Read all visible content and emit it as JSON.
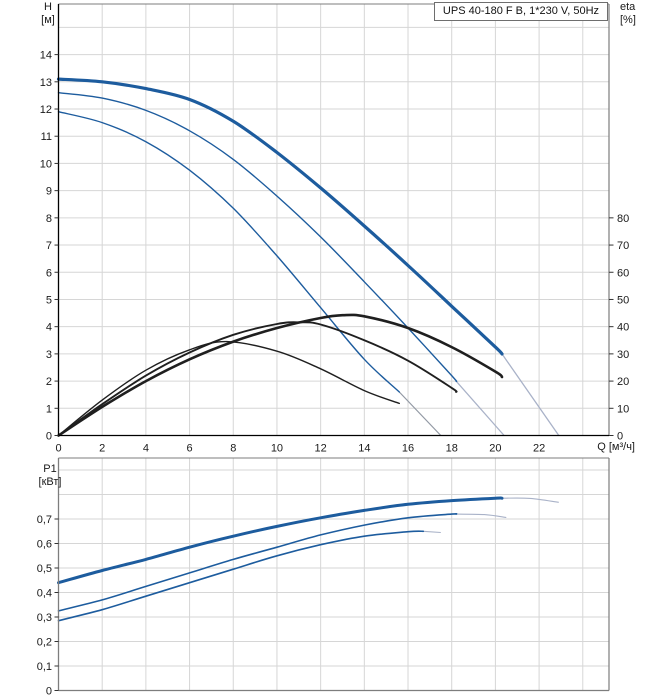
{
  "colors": {
    "curve_blue": "#1d5c9e",
    "curve_black": "#1f1f1f",
    "ext_grey_blue": "#a9b2c8",
    "ext_grey": "#9299a4",
    "grid": "#d6d6d6",
    "axis_dark": "#000000",
    "border_grey": "#7d7d7d",
    "text": "#1a1a1a"
  },
  "chart_data": [
    {
      "type": "line",
      "name": "pump-performance-curve",
      "title": "UPS 40-180 F B, 1*230 V, 50Hz",
      "x_axis": {
        "label": "Q [м³/ч]",
        "ticks": [
          0,
          2,
          4,
          6,
          8,
          10,
          12,
          14,
          16,
          18,
          20,
          22
        ],
        "range": [
          0,
          25.2
        ],
        "grid_step": 2,
        "grid_max": 24
      },
      "y_left": {
        "label": "H",
        "unit": "[м]",
        "ticks": [
          0,
          1,
          2,
          3,
          4,
          5,
          6,
          7,
          8,
          9,
          10,
          11,
          12,
          13,
          14
        ],
        "range": [
          0,
          15.86
        ],
        "grid_step": 1,
        "grid_max": 15
      },
      "y_right": {
        "label": "eta",
        "unit": "[%]",
        "ticks": [
          0,
          10,
          20,
          30,
          40,
          50,
          60,
          70,
          80
        ],
        "scale_vs_left": 10
      },
      "series": [
        {
          "name": "head-speed-3",
          "axis": "left",
          "color": "curve_blue",
          "width": 3.2,
          "points": [
            [
              0,
              13.1
            ],
            [
              2,
              13.0
            ],
            [
              4,
              12.75
            ],
            [
              6,
              12.35
            ],
            [
              8,
              11.55
            ],
            [
              10,
              10.4
            ],
            [
              12,
              9.1
            ],
            [
              14,
              7.7
            ],
            [
              16,
              6.25
            ],
            [
              18,
              4.75
            ],
            [
              20,
              3.25
            ],
            [
              20.3,
              3.0
            ]
          ],
          "ext_color": "ext_grey_blue",
          "ext_width": 1.3,
          "ext": [
            [
              20.3,
              3.0
            ],
            [
              22.9,
              0
            ]
          ]
        },
        {
          "name": "head-speed-2",
          "axis": "left",
          "color": "curve_blue",
          "width": 1.4,
          "points": [
            [
              0,
              12.6
            ],
            [
              2,
              12.4
            ],
            [
              4,
              11.95
            ],
            [
              6,
              11.2
            ],
            [
              8,
              10.15
            ],
            [
              10,
              8.8
            ],
            [
              12,
              7.3
            ],
            [
              14,
              5.65
            ],
            [
              16,
              3.95
            ],
            [
              18,
              2.2
            ],
            [
              18.2,
              2.0
            ]
          ],
          "ext_color": "ext_grey_blue",
          "ext_width": 1.3,
          "ext": [
            [
              18.2,
              2.0
            ],
            [
              20.4,
              0
            ]
          ]
        },
        {
          "name": "head-speed-1",
          "axis": "left",
          "color": "curve_blue",
          "width": 1.4,
          "points": [
            [
              0,
              11.9
            ],
            [
              2,
              11.5
            ],
            [
              4,
              10.8
            ],
            [
              6,
              9.75
            ],
            [
              8,
              8.35
            ],
            [
              10,
              6.6
            ],
            [
              12,
              4.7
            ],
            [
              14,
              2.8
            ],
            [
              15.6,
              1.6
            ]
          ],
          "ext_color": "ext_grey",
          "ext_width": 1.2,
          "ext": [
            [
              15.6,
              1.6
            ],
            [
              17.5,
              0
            ]
          ]
        },
        {
          "name": "eta-speed-3",
          "axis": "right",
          "color": "curve_black",
          "width": 2.6,
          "points": [
            [
              0,
              0
            ],
            [
              2,
              10.5
            ],
            [
              4,
              20
            ],
            [
              6,
              28
            ],
            [
              8,
              34.5
            ],
            [
              10,
              39.5
            ],
            [
              12,
              43.2
            ],
            [
              13,
              44.2
            ],
            [
              14,
              43.8
            ],
            [
              16,
              39.5
            ],
            [
              18,
              32.5
            ],
            [
              20,
              23.5
            ],
            [
              20.3,
              21.5
            ]
          ]
        },
        {
          "name": "eta-speed-2",
          "axis": "right",
          "color": "curve_black",
          "width": 1.9,
          "points": [
            [
              0,
              0
            ],
            [
              2,
              11.5
            ],
            [
              4,
              22
            ],
            [
              6,
              30.5
            ],
            [
              8,
              37
            ],
            [
              10,
              41
            ],
            [
              11,
              41.6
            ],
            [
              12,
              40.8
            ],
            [
              14,
              35
            ],
            [
              16,
              27.5
            ],
            [
              18,
              17.5
            ],
            [
              18.2,
              16
            ]
          ]
        },
        {
          "name": "eta-speed-1",
          "axis": "right",
          "color": "curve_black",
          "width": 1.4,
          "points": [
            [
              0,
              0
            ],
            [
              2,
              13
            ],
            [
              4,
              24
            ],
            [
              6,
              31.5
            ],
            [
              7.7,
              34.5
            ],
            [
              10,
              31
            ],
            [
              12,
              24.5
            ],
            [
              14,
              16.5
            ],
            [
              15.6,
              11.8
            ]
          ]
        }
      ]
    },
    {
      "type": "line",
      "name": "power-input-curve",
      "x_axis": {
        "label": "",
        "ticks": [],
        "range": [
          0,
          25.2
        ],
        "grid_step": 2,
        "grid_max": 24
      },
      "y_left": {
        "label": "P1",
        "unit": "[кВт]",
        "tick_values": [
          0,
          0.1,
          0.2,
          0.3,
          0.4,
          0.5,
          0.6,
          0.7
        ],
        "tick_labels": [
          "0",
          "0,1",
          "0,2",
          "0,3",
          "0,4",
          "0,5",
          "0,6",
          "0,7"
        ],
        "range": [
          0,
          0.949
        ],
        "grid_step": 0.1,
        "grid_max": 0.9
      },
      "series": [
        {
          "name": "p1-speed-3",
          "axis": "left",
          "color": "curve_blue",
          "width": 3.0,
          "points": [
            [
              0,
              0.44
            ],
            [
              2,
              0.49
            ],
            [
              4,
              0.535
            ],
            [
              6,
              0.585
            ],
            [
              8,
              0.63
            ],
            [
              10,
              0.67
            ],
            [
              12,
              0.705
            ],
            [
              14,
              0.735
            ],
            [
              16,
              0.76
            ],
            [
              18,
              0.775
            ],
            [
              20,
              0.785
            ],
            [
              20.3,
              0.785
            ]
          ],
          "ext_color": "ext_grey_blue",
          "ext_width": 1.1,
          "ext": [
            [
              20.3,
              0.785
            ],
            [
              21.6,
              0.784
            ],
            [
              22.9,
              0.768
            ]
          ]
        },
        {
          "name": "p1-speed-2",
          "axis": "left",
          "color": "curve_blue",
          "width": 1.6,
          "points": [
            [
              0,
              0.325
            ],
            [
              2,
              0.37
            ],
            [
              4,
              0.425
            ],
            [
              6,
              0.48
            ],
            [
              8,
              0.535
            ],
            [
              10,
              0.585
            ],
            [
              12,
              0.635
            ],
            [
              14,
              0.675
            ],
            [
              16,
              0.705
            ],
            [
              18,
              0.72
            ],
            [
              18.2,
              0.72
            ]
          ],
          "ext_color": "ext_grey_blue",
          "ext_width": 1.1,
          "ext": [
            [
              18.2,
              0.72
            ],
            [
              19.5,
              0.718
            ],
            [
              20.5,
              0.706
            ]
          ]
        },
        {
          "name": "p1-speed-1",
          "axis": "left",
          "color": "curve_blue",
          "width": 1.6,
          "points": [
            [
              0,
              0.285
            ],
            [
              2,
              0.33
            ],
            [
              4,
              0.385
            ],
            [
              6,
              0.44
            ],
            [
              8,
              0.495
            ],
            [
              10,
              0.55
            ],
            [
              12,
              0.595
            ],
            [
              14,
              0.63
            ],
            [
              16,
              0.648
            ],
            [
              16.7,
              0.65
            ]
          ],
          "ext_color": "ext_grey_blue",
          "ext_width": 1.1,
          "ext": [
            [
              16.7,
              0.65
            ],
            [
              17.5,
              0.645
            ]
          ]
        }
      ]
    }
  ]
}
